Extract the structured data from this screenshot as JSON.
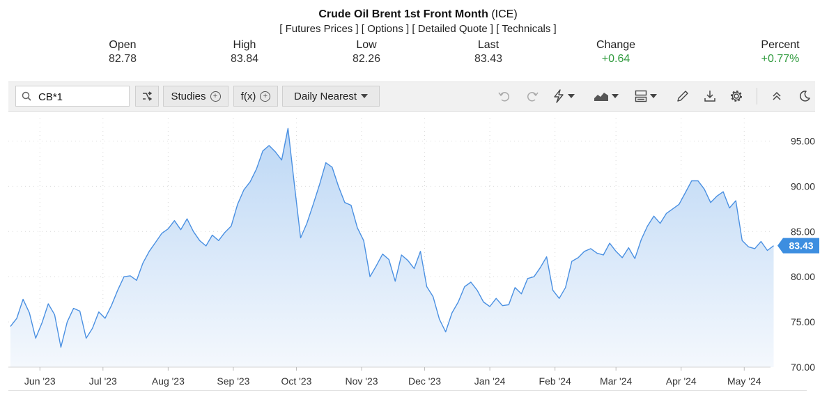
{
  "header": {
    "title_bold": "Crude Oil Brent 1st Front Month",
    "exchange": "(ICE)",
    "links": [
      "Futures Prices",
      "Options",
      "Detailed Quote",
      "Technicals"
    ]
  },
  "stats": {
    "open_label": "Open",
    "open_value": "82.78",
    "high_label": "High",
    "high_value": "83.84",
    "low_label": "Low",
    "low_value": "82.26",
    "last_label": "Last",
    "last_value": "83.43",
    "change_label": "Change",
    "change_value": "+0.64",
    "percent_label": "Percent",
    "percent_value": "+0.77%"
  },
  "toolbar": {
    "symbol_value": "CB*1",
    "studies_label": "Studies",
    "fx_label": "f(x)",
    "period_label": "Daily Nearest",
    "icons": [
      "search-icon",
      "compare-icon",
      "undo-icon",
      "redo-icon",
      "lightning-icon",
      "chart-type-icon",
      "layout-icon",
      "pencil-icon",
      "download-icon",
      "gear-icon",
      "collapse-icon",
      "theme-moon-icon"
    ]
  },
  "colors": {
    "line": "#4a90e2",
    "fill_top": "#bcd7f5",
    "fill_bottom": "#f4f8fd",
    "positive": "#2e9a3c",
    "badge": "#3d8ee0"
  },
  "chart_data": {
    "type": "area",
    "x_ticks": [
      "Jun '23",
      "Jul '23",
      "Aug '23",
      "Sep '23",
      "Oct '23",
      "Nov '23",
      "Dec '23",
      "Jan '24",
      "Feb '24",
      "Mar '24",
      "Apr '24",
      "May '24"
    ],
    "y_ticks": [
      "70.00",
      "75.00",
      "80.00",
      "85.00",
      "90.00",
      "95.00"
    ],
    "ylim": [
      70,
      97.5
    ],
    "last_price": "83.43",
    "grid": true,
    "series": [
      {
        "x": [
          "2023-05-18",
          "2023-05-21",
          "2023-05-24",
          "2023-05-27",
          "2023-05-30",
          "2023-06-02",
          "2023-06-05",
          "2023-06-08",
          "2023-06-11",
          "2023-06-14",
          "2023-06-17",
          "2023-06-20",
          "2023-06-23",
          "2023-06-26",
          "2023-06-29",
          "2023-07-02",
          "2023-07-05",
          "2023-07-08",
          "2023-07-11",
          "2023-07-14",
          "2023-07-17",
          "2023-07-20",
          "2023-07-23",
          "2023-07-26",
          "2023-07-29",
          "2023-08-01",
          "2023-08-04",
          "2023-08-07",
          "2023-08-10",
          "2023-08-13",
          "2023-08-16",
          "2023-08-19",
          "2023-08-22",
          "2023-08-25",
          "2023-08-28",
          "2023-08-31",
          "2023-09-03",
          "2023-09-06",
          "2023-09-09",
          "2023-09-12",
          "2023-09-15",
          "2023-09-18",
          "2023-09-21",
          "2023-09-24",
          "2023-09-27",
          "2023-09-30",
          "2023-10-03",
          "2023-10-06",
          "2023-10-09",
          "2023-10-12",
          "2023-10-15",
          "2023-10-18",
          "2023-10-21",
          "2023-10-24",
          "2023-10-27",
          "2023-10-30",
          "2023-11-02",
          "2023-11-05",
          "2023-11-08",
          "2023-11-11",
          "2023-11-14",
          "2023-11-17",
          "2023-11-20",
          "2023-11-23",
          "2023-11-26",
          "2023-11-29",
          "2023-12-02",
          "2023-12-05",
          "2023-12-08",
          "2023-12-11",
          "2023-12-14",
          "2023-12-17",
          "2023-12-20",
          "2023-12-23",
          "2023-12-26",
          "2023-12-29",
          "2024-01-01",
          "2024-01-04",
          "2024-01-07",
          "2024-01-10",
          "2024-01-13",
          "2024-01-16",
          "2024-01-19",
          "2024-01-22",
          "2024-01-25",
          "2024-01-28",
          "2024-01-31",
          "2024-02-03",
          "2024-02-06",
          "2024-02-09",
          "2024-02-12",
          "2024-02-15",
          "2024-02-18",
          "2024-02-21",
          "2024-02-24",
          "2024-02-27",
          "2024-03-01",
          "2024-03-04",
          "2024-03-07",
          "2024-03-10",
          "2024-03-13",
          "2024-03-16",
          "2024-03-19",
          "2024-03-22",
          "2024-03-25",
          "2024-03-28",
          "2024-03-31",
          "2024-04-03",
          "2024-04-06",
          "2024-04-09",
          "2024-04-12",
          "2024-04-15",
          "2024-04-18",
          "2024-04-21",
          "2024-04-24",
          "2024-04-27",
          "2024-04-30",
          "2024-05-03",
          "2024-05-06",
          "2024-05-09",
          "2024-05-12",
          "2024-05-15"
        ],
        "y": [
          74.5,
          75.4,
          77.5,
          76.0,
          73.2,
          74.9,
          77.0,
          75.8,
          72.2,
          75.0,
          76.5,
          76.2,
          73.2,
          74.3,
          76.1,
          75.4,
          76.8,
          78.5,
          80.0,
          80.1,
          79.6,
          81.5,
          82.8,
          83.8,
          84.8,
          85.3,
          86.2,
          85.2,
          86.4,
          85.0,
          84.0,
          83.4,
          84.6,
          84.0,
          84.9,
          85.6,
          88.0,
          89.6,
          90.5,
          91.9,
          93.9,
          94.5,
          93.8,
          92.9,
          96.4,
          90.3,
          84.3,
          85.9,
          88.0,
          90.2,
          92.6,
          92.1,
          90.0,
          88.2,
          87.9,
          85.4,
          84.0,
          80.0,
          81.2,
          82.5,
          81.9,
          79.5,
          82.4,
          81.8,
          80.9,
          82.8,
          78.9,
          77.8,
          75.3,
          73.9,
          76.0,
          77.2,
          78.9,
          79.4,
          78.5,
          77.2,
          76.7,
          77.6,
          76.8,
          76.9,
          78.8,
          78.1,
          79.8,
          80.0,
          81.0,
          82.2,
          78.5,
          77.6,
          78.8,
          81.7,
          82.1,
          82.8,
          83.1,
          82.6,
          82.4,
          83.7,
          82.8,
          82.1,
          83.2,
          82.0,
          84.1,
          85.6,
          86.7,
          85.9,
          87.0,
          87.5,
          88.0,
          89.3,
          90.6,
          90.6,
          89.7,
          88.2,
          88.9,
          89.4,
          87.6,
          88.4,
          84.0,
          83.3,
          83.1,
          83.9,
          82.9,
          83.43
        ]
      }
    ]
  }
}
